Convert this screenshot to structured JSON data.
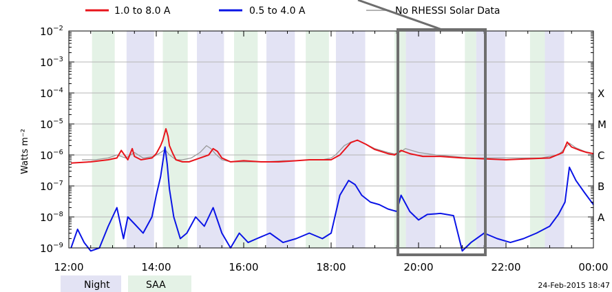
{
  "chart_data": {
    "type": "line",
    "title": "",
    "ylabel": "Watts m⁻²",
    "xlabel": "",
    "y_scale": "log",
    "ylim": [
      "1e-9",
      "1e-2"
    ],
    "y_ticks": [
      {
        "exp": -2,
        "label": "10",
        "sup": "−2"
      },
      {
        "exp": -3,
        "label": "10",
        "sup": "−3"
      },
      {
        "exp": -4,
        "label": "10",
        "sup": "−4"
      },
      {
        "exp": -5,
        "label": "10",
        "sup": "−5"
      },
      {
        "exp": -6,
        "label": "10",
        "sup": "−6"
      },
      {
        "exp": -7,
        "label": "10",
        "sup": "−7"
      },
      {
        "exp": -8,
        "label": "10",
        "sup": "−8"
      },
      {
        "exp": -9,
        "label": "10",
        "sup": "−9"
      }
    ],
    "x_ticks": [
      "12:00",
      "14:00",
      "16:00",
      "18:00",
      "20:00",
      "22:00",
      "00:00"
    ],
    "x_range_hours": [
      12,
      24
    ],
    "flare_classes": [
      {
        "label": "X",
        "exp": -4
      },
      {
        "label": "M",
        "exp": -5
      },
      {
        "label": "C",
        "exp": -6
      },
      {
        "label": "B",
        "exp": -7
      },
      {
        "label": "A",
        "exp": -8
      }
    ],
    "legend": [
      {
        "label": "1.0 to 8.0 A",
        "color": "#e8141b"
      },
      {
        "label": "0.5 to 4.0 A",
        "color": "#0a14e6"
      },
      {
        "label": "No RHESSI Solar Data",
        "color": "#9a9a9a"
      }
    ],
    "background_key": [
      {
        "label": "Night",
        "color": "#e3e3f4"
      },
      {
        "label": "SAA",
        "color": "#e4f2e6"
      }
    ],
    "night_intervals_hours": [
      [
        13.32,
        13.95
      ],
      [
        14.93,
        15.55
      ],
      [
        16.52,
        17.17
      ],
      [
        18.11,
        18.78
      ],
      [
        19.71,
        20.38
      ],
      [
        21.32,
        21.98
      ],
      [
        22.89,
        23.33
      ]
    ],
    "saa_intervals_hours": [
      [
        12.53,
        13.05
      ],
      [
        14.15,
        14.72
      ],
      [
        15.78,
        16.32
      ],
      [
        17.42,
        17.95
      ],
      [
        19.45,
        19.71
      ],
      [
        21.06,
        21.32
      ],
      [
        22.55,
        22.89
      ]
    ],
    "series": [
      {
        "name": "1.0 to 8.0 A",
        "color": "#e8141b",
        "x": [
          12.05,
          12.5,
          12.9,
          13.1,
          13.2,
          13.35,
          13.45,
          13.5,
          13.65,
          13.9,
          14.0,
          14.1,
          14.15,
          14.22,
          14.27,
          14.3,
          14.38,
          14.45,
          14.6,
          14.75,
          15.0,
          15.2,
          15.3,
          15.4,
          15.5,
          15.7,
          16.0,
          16.4,
          16.8,
          17.2,
          17.5,
          17.8,
          18.0,
          18.2,
          18.45,
          18.6,
          18.8,
          19.0,
          19.3,
          19.45,
          19.6,
          19.8,
          20.1,
          20.5,
          21.0,
          21.5,
          22.0,
          22.5,
          23.0,
          23.3,
          23.4,
          23.5,
          23.7,
          23.85,
          24.0
        ],
        "y": [
          "5.5e-7",
          "6e-7",
          "7e-7",
          "8e-7",
          "1.4e-6",
          "7e-7",
          "1.6e-6",
          "9e-7",
          "7e-7",
          "8e-7",
          "1.1e-6",
          "2e-6",
          "3e-6",
          "7e-6",
          "4e-6",
          "2e-6",
          "1.1e-6",
          "7e-7",
          "6e-7",
          "6e-7",
          "8e-7",
          "1e-6",
          "1.6e-6",
          "1.3e-6",
          "8e-7",
          "6e-7",
          "6.5e-7",
          "6e-7",
          "6e-7",
          "6.5e-7",
          "7e-7",
          "7e-7",
          "7e-7",
          "1e-6",
          "2.5e-6",
          "3e-6",
          "2.2e-6",
          "1.5e-6",
          "1.1e-6",
          "1e-6",
          "1.4e-6",
          "1.1e-6",
          "9e-7",
          "9e-7",
          "8e-7",
          "7.5e-7",
          "7e-7",
          "7.5e-7",
          "8e-7",
          "1.2e-6",
          "2.6e-6",
          "1.8e-6",
          "1.4e-6",
          "1.2e-6",
          "1.1e-6"
        ]
      },
      {
        "name": "0.5 to 4.0 A",
        "color": "#0a14e6",
        "x": [
          12.05,
          12.2,
          12.35,
          12.5,
          12.7,
          12.9,
          13.1,
          13.25,
          13.35,
          13.5,
          13.7,
          13.9,
          14.0,
          14.1,
          14.15,
          14.2,
          14.25,
          14.3,
          14.4,
          14.55,
          14.7,
          14.9,
          15.1,
          15.3,
          15.5,
          15.7,
          15.9,
          16.1,
          16.3,
          16.6,
          16.9,
          17.2,
          17.5,
          17.8,
          18.0,
          18.2,
          18.4,
          18.55,
          18.7,
          18.9,
          19.1,
          19.3,
          19.5,
          19.6,
          19.8,
          20.0,
          20.2,
          20.5,
          20.8,
          21.0,
          21.2,
          21.5,
          21.8,
          22.1,
          22.4,
          22.7,
          23.0,
          23.2,
          23.35,
          23.45,
          23.6,
          23.8,
          24.0
        ],
        "y": [
          "1e-9",
          "4e-9",
          "1.5e-9",
          "8e-10",
          "1e-9",
          "5e-9",
          "2e-8",
          "2e-9",
          "1e-8",
          "6e-9",
          "3e-9",
          "1e-8",
          "5e-8",
          "2e-7",
          "6e-7",
          "1.8e-6",
          "5e-7",
          "8e-8",
          "1e-8",
          "2e-9",
          "3e-9",
          "1e-8",
          "5e-9",
          "2e-8",
          "3e-9",
          "1e-9",
          "3e-9",
          "1.5e-9",
          "2e-9",
          "3e-9",
          "1.5e-9",
          "2e-9",
          "3e-9",
          "2e-9",
          "3e-9",
          "5e-8",
          "1.5e-7",
          "1.1e-7",
          "5e-8",
          "3e-8",
          "2.5e-8",
          "1.8e-8",
          "1.5e-8",
          "5e-8",
          "1.5e-8",
          "8e-9",
          "1.2e-8",
          "1.3e-8",
          "1.1e-8",
          "8e-10",
          "1.5e-9",
          "3e-9",
          "2e-9",
          "1.5e-9",
          "2e-9",
          "3e-9",
          "5e-9",
          "1.2e-8",
          "3e-8",
          "4e-7",
          "1.5e-7",
          "6e-8",
          "2.5e-8"
        ]
      },
      {
        "name": "No RHESSI Solar Data",
        "color": "#9a9a9a",
        "x": [
          12.3,
          12.6,
          12.9,
          13.1,
          13.3,
          13.5,
          13.7,
          13.95,
          14.1,
          14.2,
          14.3,
          14.45,
          14.6,
          14.8,
          15.0,
          15.15,
          15.25,
          15.35,
          15.5,
          15.7,
          15.9,
          16.2,
          16.5,
          16.9,
          17.2,
          17.5,
          17.8,
          18.0,
          18.1,
          18.2,
          18.3,
          18.45,
          18.6,
          18.8,
          19.0,
          19.3,
          19.5,
          19.7,
          20.0,
          20.4,
          20.8,
          21.2,
          21.6,
          22.0,
          22.4,
          22.8,
          23.0,
          23.2,
          23.3,
          23.45,
          23.6,
          23.8,
          24.0
        ],
        "y": [
          "7e-7",
          "7e-7",
          "8e-7",
          "1e-6",
          "8e-7",
          "1.2e-6",
          "8e-7",
          "9e-7",
          "1.2e-6",
          "1.5e-6",
          "1e-6",
          "7e-7",
          "7e-7",
          "8e-7",
          "1.2e-6",
          "2e-6",
          "1.6e-6",
          "1.1e-6",
          "7e-7",
          "6e-7",
          "6e-7",
          "6e-7",
          "6e-7",
          "6.5e-7",
          "6.5e-7",
          "7e-7",
          "7e-7",
          "8e-7",
          "1e-6",
          "1.4e-6",
          "2e-6",
          "2.6e-6",
          "3e-6",
          "2.2e-6",
          "1.6e-6",
          "1.2e-6",
          "1.05e-6",
          "1.6e-6",
          "1.2e-6",
          "1e-6",
          "9e-7",
          "8e-7",
          "8e-7",
          "8e-7",
          "8e-7",
          "8e-7",
          "9e-7",
          "1e-6",
          "1.4e-6",
          "2.4e-6",
          "1.7e-6",
          "1.3e-6",
          "1.1e-6"
        ]
      }
    ]
  },
  "timestamp": "24-Feb-2015 18:47"
}
